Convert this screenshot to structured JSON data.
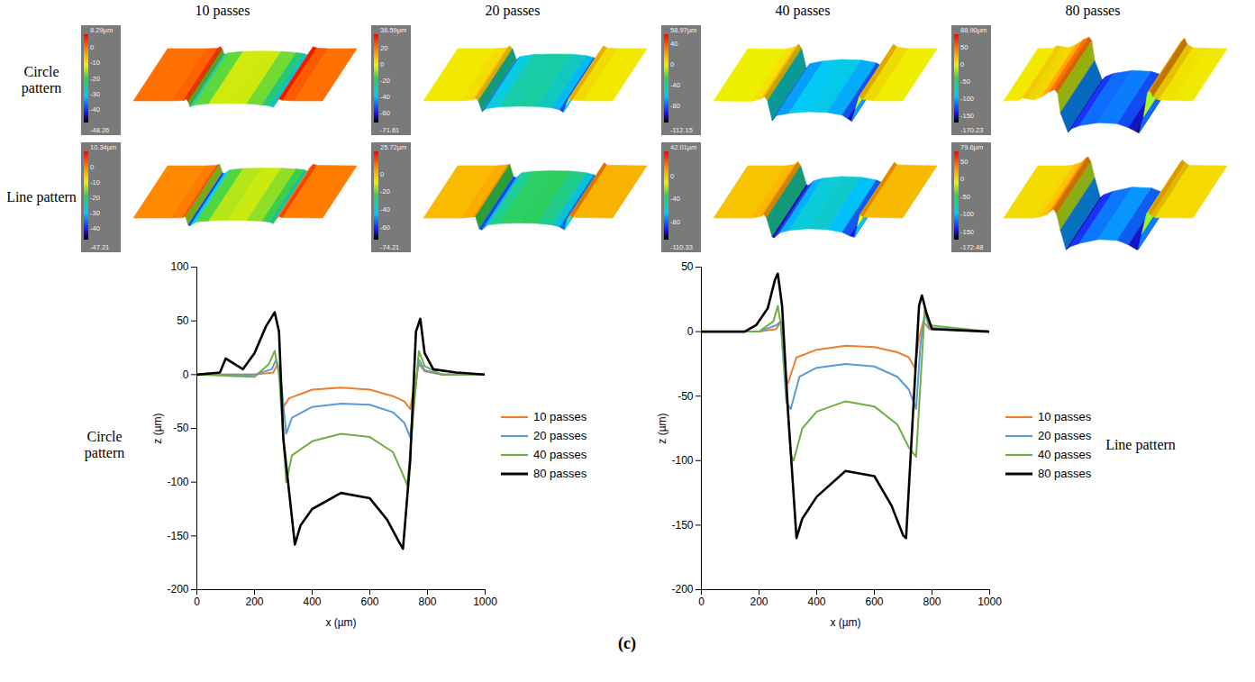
{
  "column_titles": [
    "10 passes",
    "20 passes",
    "40 passes",
    "80 passes"
  ],
  "surface_rows": [
    {
      "label": "Circle pattern",
      "colorbars": [
        {
          "range": [
            -48.26,
            8.29
          ],
          "ticks": [
            {
              "value": 8.29,
              "label": "8.29µm"
            },
            0,
            -10,
            -20,
            -30,
            -40,
            -48.26
          ]
        },
        {
          "range": [
            -71.61,
            36.59
          ],
          "ticks": [
            {
              "value": 36.59,
              "label": "36.59µm"
            },
            20,
            0,
            -20,
            -40,
            -60,
            -71.61
          ]
        },
        {
          "range": [
            -112.15,
            58.97
          ],
          "ticks": [
            {
              "value": 58.97,
              "label": "58.97µm"
            },
            40,
            0,
            -40,
            -80,
            -112.15
          ]
        },
        {
          "range": [
            -170.23,
            88.9
          ],
          "ticks": [
            {
              "value": 88.9,
              "label": "88.90µm"
            },
            50,
            0,
            -50,
            -100,
            -150,
            -170.23
          ]
        }
      ]
    },
    {
      "label": "Line pattern",
      "colorbars": [
        {
          "range": [
            -47.21,
            10.34
          ],
          "ticks": [
            {
              "value": 10.34,
              "label": "10.34µm"
            },
            0,
            -10,
            -20,
            -30,
            -40,
            -47.21
          ]
        },
        {
          "range": [
            -74.21,
            25.72
          ],
          "ticks": [
            {
              "value": 25.72,
              "label": "25.72µm"
            },
            0,
            -20,
            -40,
            -60,
            -74.21
          ]
        },
        {
          "range": [
            -110.33,
            42.01
          ],
          "ticks": [
            {
              "value": 42.01,
              "label": "42.01µm"
            },
            0,
            -40,
            -80,
            -110.33
          ]
        },
        {
          "range": [
            -172.48,
            79.6
          ],
          "ticks": [
            {
              "value": 79.6,
              "label": "79.6µm"
            },
            50,
            0,
            -50,
            -100,
            -150,
            -172.48
          ]
        }
      ]
    }
  ],
  "caption": "(c)",
  "chart_data": [
    {
      "type": "line",
      "side_label": "Circle pattern",
      "x_label": "x (µm)",
      "y_label": "z (µm)",
      "xlim": [
        0,
        1000
      ],
      "xticks": [
        0,
        200,
        400,
        600,
        800,
        1000
      ],
      "ylim": [
        -200,
        100
      ],
      "yticks": [
        -200,
        -150,
        -100,
        -50,
        0,
        50,
        100
      ],
      "legend": "right",
      "series": [
        {
          "name": "10 passes",
          "color": "#ED7D31",
          "line_style": "solid",
          "x": [
            0,
            200,
            265,
            280,
            290,
            300,
            320,
            400,
            500,
            600,
            680,
            720,
            740,
            755,
            770,
            790,
            850,
            1000
          ],
          "values": [
            0,
            0,
            2,
            10,
            -5,
            -30,
            -22,
            -14,
            -12,
            -14,
            -20,
            -25,
            -32,
            -10,
            10,
            3,
            0,
            0
          ]
        },
        {
          "name": "20 passes",
          "color": "#5B9BD5",
          "line_style": "solid",
          "x": [
            0,
            200,
            260,
            275,
            290,
            310,
            330,
            400,
            500,
            600,
            680,
            720,
            740,
            755,
            770,
            790,
            850,
            1000
          ],
          "values": [
            0,
            0,
            5,
            14,
            0,
            -55,
            -40,
            -30,
            -27,
            -28,
            -35,
            -45,
            -58,
            -20,
            14,
            4,
            0,
            0
          ]
        },
        {
          "name": "40 passes",
          "color": "#70AD47",
          "line_style": "solid",
          "x": [
            0,
            200,
            250,
            270,
            285,
            310,
            330,
            400,
            500,
            600,
            680,
            710,
            730,
            750,
            770,
            790,
            850,
            1000
          ],
          "values": [
            0,
            -2,
            10,
            22,
            0,
            -100,
            -75,
            -62,
            -55,
            -58,
            -72,
            -90,
            -103,
            -40,
            22,
            8,
            0,
            0
          ]
        },
        {
          "name": "80 passes",
          "color": "#000000",
          "line_style": "solid",
          "x": [
            0,
            80,
            100,
            130,
            160,
            200,
            240,
            270,
            285,
            300,
            340,
            360,
            400,
            500,
            600,
            660,
            700,
            715,
            740,
            760,
            775,
            790,
            820,
            900,
            1000
          ],
          "values": [
            0,
            2,
            15,
            10,
            5,
            20,
            45,
            58,
            40,
            -60,
            -158,
            -140,
            -125,
            -110,
            -115,
            -135,
            -155,
            -162,
            -80,
            40,
            52,
            20,
            5,
            2,
            0
          ]
        }
      ]
    },
    {
      "type": "line",
      "side_label": "Line pattern",
      "x_label": "x (µm)",
      "y_label": "z (µm)",
      "xlim": [
        0,
        1000
      ],
      "xticks": [
        0,
        200,
        400,
        600,
        800,
        1000
      ],
      "ylim": [
        -200,
        50
      ],
      "yticks": [
        -200,
        -150,
        -100,
        -50,
        0,
        50
      ],
      "legend": "right",
      "series": [
        {
          "name": "10 passes",
          "color": "#ED7D31",
          "line_style": "solid",
          "x": [
            0,
            200,
            260,
            275,
            290,
            300,
            330,
            400,
            500,
            600,
            680,
            720,
            740,
            755,
            770,
            790,
            1000
          ],
          "values": [
            0,
            0,
            2,
            8,
            -35,
            -40,
            -20,
            -14,
            -11,
            -12,
            -16,
            -20,
            -28,
            -5,
            8,
            2,
            0
          ]
        },
        {
          "name": "20 passes",
          "color": "#5B9BD5",
          "line_style": "solid",
          "x": [
            0,
            200,
            260,
            275,
            295,
            310,
            340,
            400,
            500,
            600,
            680,
            720,
            745,
            760,
            775,
            790,
            1000
          ],
          "values": [
            0,
            0,
            5,
            8,
            -55,
            -60,
            -35,
            -28,
            -25,
            -27,
            -35,
            -45,
            -60,
            -10,
            15,
            3,
            0
          ]
        },
        {
          "name": "40 passes",
          "color": "#70AD47",
          "line_style": "solid",
          "x": [
            0,
            200,
            250,
            265,
            280,
            310,
            320,
            350,
            400,
            500,
            600,
            680,
            720,
            745,
            760,
            775,
            790,
            1000
          ],
          "values": [
            0,
            0,
            8,
            20,
            0,
            -95,
            -100,
            -75,
            -62,
            -54,
            -58,
            -72,
            -90,
            -97,
            -40,
            18,
            5,
            0
          ]
        },
        {
          "name": "80 passes",
          "color": "#000000",
          "line_style": "solid",
          "x": [
            0,
            150,
            190,
            230,
            255,
            265,
            280,
            300,
            330,
            350,
            400,
            500,
            600,
            660,
            700,
            710,
            730,
            755,
            765,
            780,
            800,
            1000
          ],
          "values": [
            0,
            0,
            5,
            18,
            40,
            45,
            20,
            -60,
            -160,
            -145,
            -128,
            -108,
            -112,
            -135,
            -158,
            -160,
            -80,
            20,
            28,
            15,
            2,
            0
          ]
        }
      ]
    }
  ]
}
